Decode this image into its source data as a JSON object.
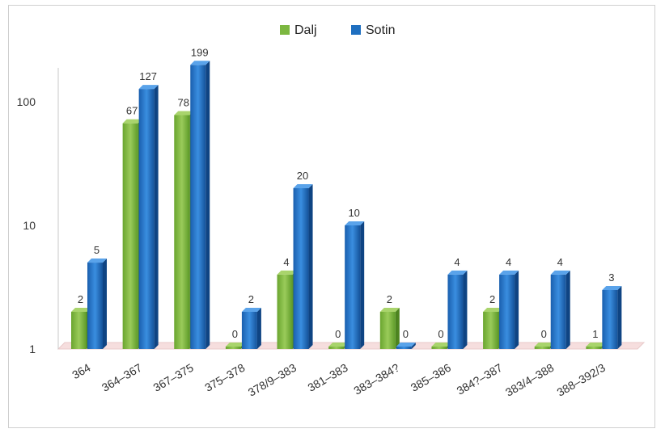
{
  "chart_data": {
    "type": "bar",
    "scale": "log",
    "ylim": [
      1,
      250
    ],
    "yticks": [
      "1",
      "10",
      "100"
    ],
    "legend_position": "top-center",
    "categories": [
      "364",
      "364–367",
      "367–375",
      "375–378",
      "378/9–383",
      "381–383",
      "383–384?",
      "385–386",
      "384?–387",
      "383/4–388",
      "388–392/3"
    ],
    "series": [
      {
        "name": "Dalj",
        "color": "#7cb740",
        "values": [
          2,
          67,
          78,
          0,
          4,
          0,
          2,
          0,
          2,
          0,
          1
        ]
      },
      {
        "name": "Sotin",
        "color": "#1f6fc0",
        "values": [
          5,
          127,
          199,
          2,
          20,
          10,
          0,
          4,
          4,
          4,
          3
        ]
      }
    ],
    "grid": false
  }
}
